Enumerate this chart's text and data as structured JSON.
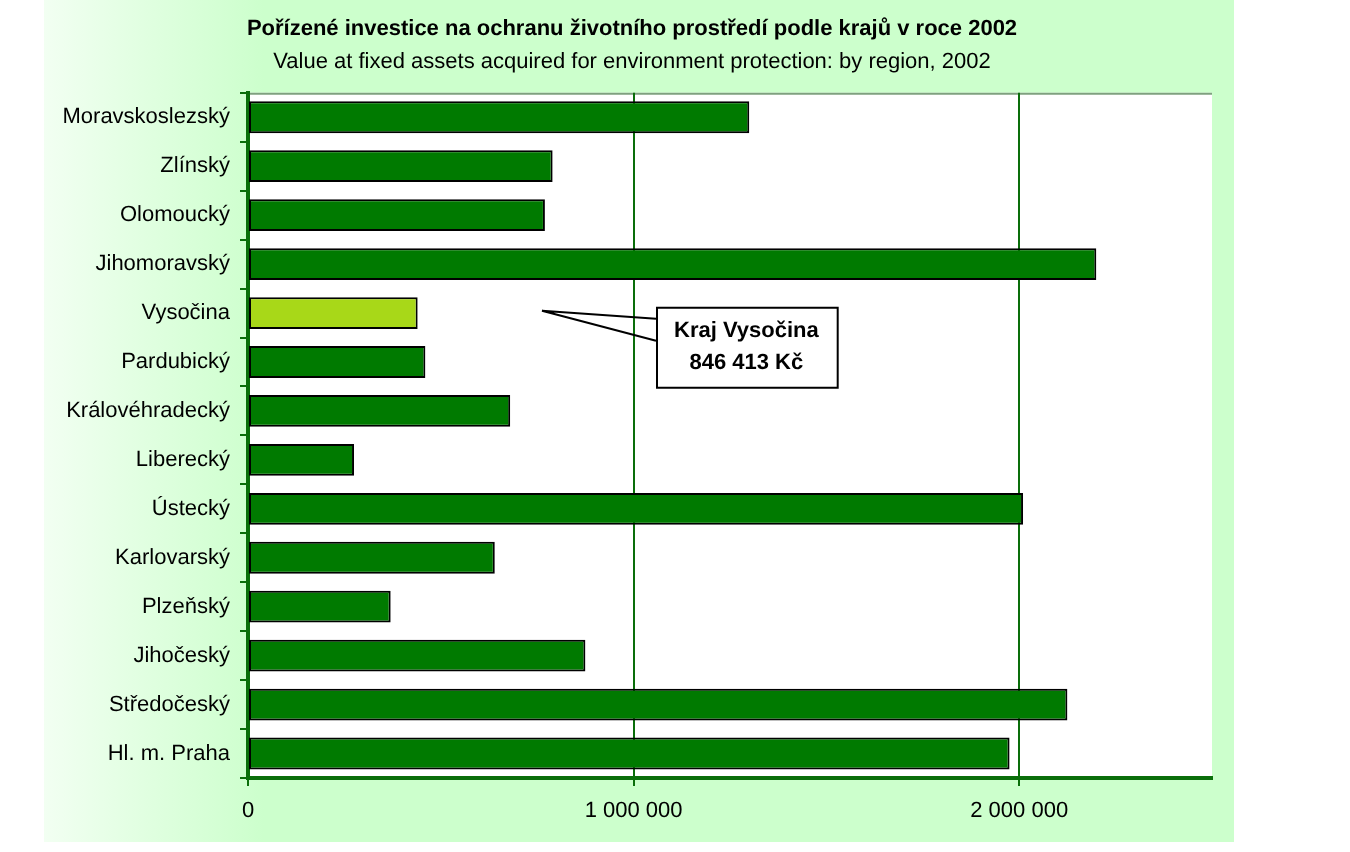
{
  "chart_data": {
    "type": "bar",
    "orientation": "horizontal",
    "title": "Pořízené investice na ochranu životního prostředí podle krajů v roce 2002",
    "subtitle": "Value at fixed assets acquired for environment protection: by region, 2002",
    "categories": [
      "Moravskoslezský",
      "Zlínský",
      "Olomoucký",
      "Jihomoravský",
      "Vysočina",
      "Pardubický",
      "Královéhradecký",
      "Liberecký",
      "Ústecký",
      "Karlovarský",
      "Plzeňský",
      "Jihočeský",
      "Středočeský",
      "Hl. m. Praha"
    ],
    "values": [
      1300000,
      790000,
      770000,
      2200000,
      440000,
      460000,
      680000,
      275000,
      2010000,
      640000,
      370000,
      875000,
      2125000,
      1975000
    ],
    "colors": [
      "#007a00",
      "#007a00",
      "#007a00",
      "#007a00",
      "#a8d818",
      "#007a00",
      "#007a00",
      "#007a00",
      "#007a00",
      "#007a00",
      "#007a00",
      "#007a00",
      "#007a00",
      "#007a00"
    ],
    "xlim": [
      0,
      2500000
    ],
    "xticks": [
      0,
      {
        "value": 1000000,
        "label": "1 000 000"
      },
      {
        "value": 2000000,
        "label": "2 000 000"
      }
    ],
    "grid": "x",
    "annotations": [
      "Kraj Vysočina\n846 413 Kč"
    ]
  }
}
